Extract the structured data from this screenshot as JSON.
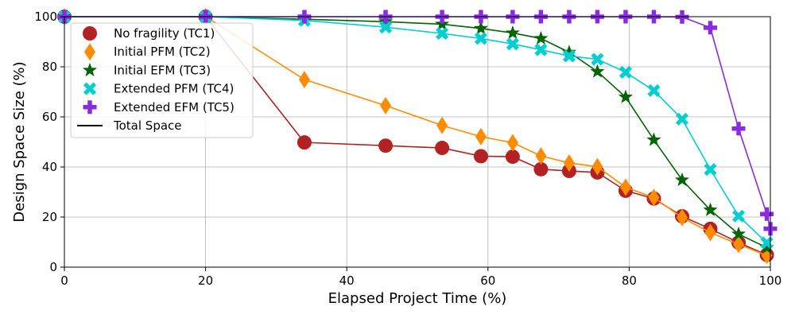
{
  "chart_data": {
    "type": "line",
    "xlabel": "Elapsed Project Time (%)",
    "ylabel": "Design Space Size (%)",
    "xlim": [
      0,
      100
    ],
    "ylim": [
      0,
      100
    ],
    "x_ticks": [
      0,
      20,
      40,
      60,
      80,
      100
    ],
    "y_ticks": [
      0,
      20,
      40,
      60,
      80,
      100
    ],
    "grid": true,
    "legend_position": "top-left",
    "series": [
      {
        "name": "Total Space",
        "color": "#000000",
        "marker": "line",
        "x": [],
        "y": []
      },
      {
        "name": "No fragility (TC1)",
        "color": "#b22222",
        "marker": "circle",
        "x": [
          0,
          20,
          34,
          45.5,
          53.5,
          59,
          63.5,
          67.5,
          71.5,
          75.5,
          79.5,
          83.5,
          87.5,
          91.5,
          95.5,
          99.5
        ],
        "y": [
          100,
          100,
          49.8,
          48.5,
          47.6,
          44.3,
          44.1,
          39.1,
          38.4,
          37.8,
          30.5,
          27.4,
          20.3,
          15.3,
          9.8,
          4.9
        ]
      },
      {
        "name": "Initial PFM (TC2)",
        "color": "#ff8c00",
        "marker": "diamond",
        "x": [
          0,
          20,
          34,
          45.5,
          53.5,
          59,
          63.5,
          67.5,
          71.5,
          75.5,
          79.5,
          83.5,
          87.5,
          91.5,
          95.5,
          99.5
        ],
        "y": [
          100,
          100,
          74.9,
          64.5,
          56.6,
          52.1,
          49.7,
          44.4,
          41.6,
          40.1,
          31.9,
          27.8,
          19.8,
          13.8,
          9.1,
          4.7
        ]
      },
      {
        "name": "Initial EFM (TC3)",
        "color": "#006400",
        "marker": "star",
        "x": [
          0,
          20,
          34,
          45.5,
          53.5,
          59,
          63.5,
          67.5,
          71.5,
          75.5,
          79.5,
          83.5,
          87.5,
          91.5,
          95.5,
          99.5
        ],
        "y": [
          100,
          100,
          99,
          98,
          97,
          95.3,
          93.5,
          91.3,
          85.8,
          78.1,
          67.9,
          50.8,
          34.8,
          22.8,
          13.2,
          7.8
        ]
      },
      {
        "name": "Extended PFM (TC4)",
        "color": "#00ced1",
        "marker": "x",
        "x": [
          0,
          20,
          34,
          45.5,
          53.5,
          59,
          63.5,
          67.5,
          71.5,
          75.5,
          79.5,
          83.5,
          87.5,
          91.5,
          95.5,
          99.5
        ],
        "y": [
          100,
          100,
          98.5,
          95.8,
          93.3,
          91.3,
          89.1,
          86.8,
          84.3,
          83,
          77.8,
          70.5,
          59.1,
          39,
          20.4,
          9.7
        ]
      },
      {
        "name": "Extended EFM (TC5)",
        "color": "#8a2be2",
        "marker": "plus",
        "x": [
          0,
          20,
          34,
          45.5,
          53.5,
          59,
          63.5,
          67.5,
          71.5,
          75.5,
          79.5,
          83.5,
          87.5,
          91.5,
          95.5,
          99.5,
          100
        ],
        "y": [
          100,
          100,
          100,
          100,
          100,
          100,
          100,
          100,
          100,
          100,
          100,
          100,
          99.9,
          95.6,
          55.3,
          21.2,
          15.3
        ]
      }
    ],
    "legend_order": [
      "No fragility (TC1)",
      "Initial PFM (TC2)",
      "Initial EFM (TC3)",
      "Extended PFM (TC4)",
      "Extended EFM (TC5)",
      "Total Space"
    ]
  }
}
